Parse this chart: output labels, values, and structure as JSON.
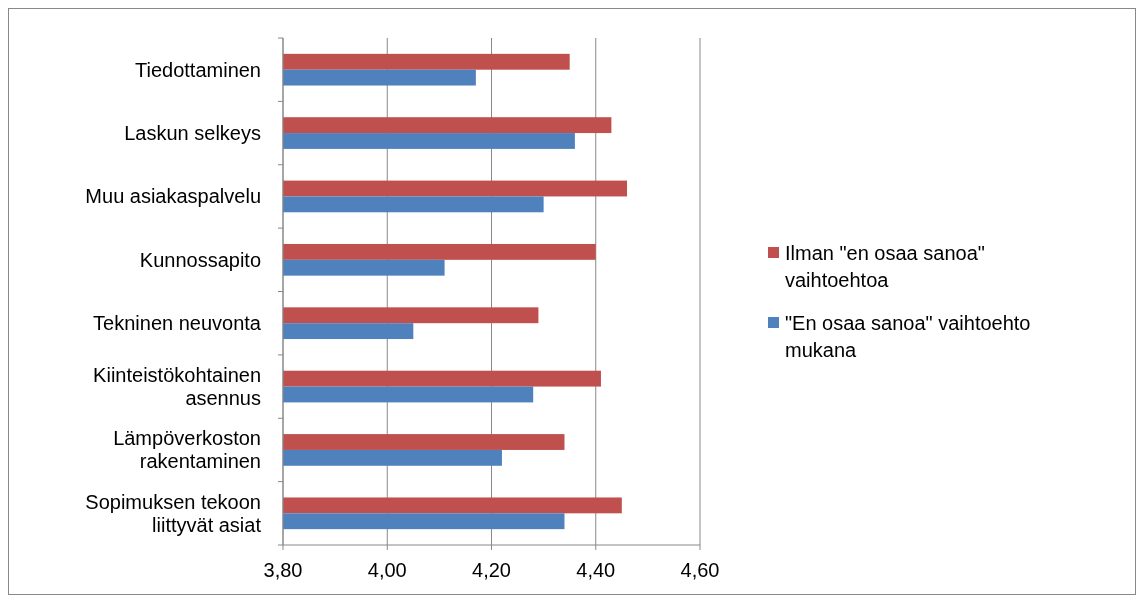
{
  "chart_data": {
    "type": "bar",
    "orientation": "horizontal",
    "categories": [
      "Tiedottaminen",
      "Laskun selkeys",
      "Muu asiakaspalvelu",
      "Kunnossapito",
      "Tekninen neuvonta",
      "Kiinteistökohtainen asennus",
      "Lämpöverkoston rakentaminen",
      "Sopimuksen tekoon liittyvät asiat"
    ],
    "series": [
      {
        "name": "Ilman \"en osaa sanoa\" vaihtoehtoa",
        "color": "#c0504d",
        "values": [
          4.35,
          4.43,
          4.46,
          4.4,
          4.29,
          4.41,
          4.34,
          4.45
        ]
      },
      {
        "name": "\"En osaa sanoa\" vaihtoehto mukana",
        "color": "#4f81bd",
        "values": [
          4.17,
          4.36,
          4.3,
          4.11,
          4.05,
          4.28,
          4.22,
          4.34
        ]
      }
    ],
    "xlim": [
      3.8,
      4.6
    ],
    "xticks": [
      {
        "value": 3.8,
        "label": "3,80"
      },
      {
        "value": 4.0,
        "label": "4,00"
      },
      {
        "value": 4.2,
        "label": "4,20"
      },
      {
        "value": 4.4,
        "label": "4,40"
      },
      {
        "value": 4.6,
        "label": "4,60"
      }
    ],
    "grid": "x",
    "legend": "right"
  }
}
